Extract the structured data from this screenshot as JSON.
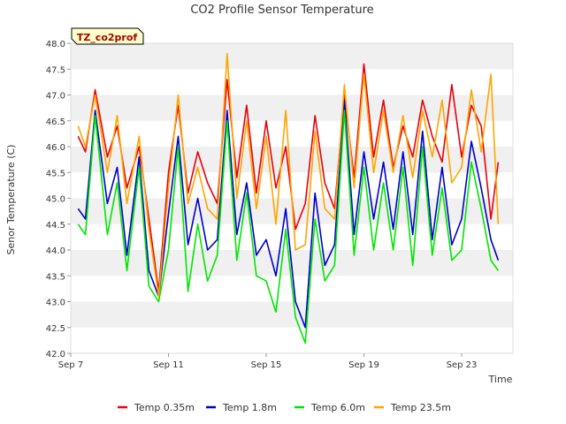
{
  "chart_data": {
    "type": "line",
    "title": "CO2 Profile Sensor Temperature",
    "xlabel": "Time",
    "ylabel": "Senor Temperature (C)",
    "badge": "TZ_co2prof",
    "ylim": [
      42.0,
      48.0
    ],
    "xlim_days": [
      7,
      25.1
    ],
    "y_ticks": [
      "42.0",
      "42.5",
      "43.0",
      "43.5",
      "44.0",
      "44.5",
      "45.0",
      "45.5",
      "46.0",
      "46.5",
      "47.0",
      "47.5",
      "48.0"
    ],
    "x_ticks": [
      {
        "label": "Sep 7",
        "day": 7
      },
      {
        "label": "Sep 11",
        "day": 11
      },
      {
        "label": "Sep 15",
        "day": 15
      },
      {
        "label": "Sep 19",
        "day": 19
      },
      {
        "label": "Sep 23",
        "day": 23
      }
    ],
    "legend_position": "bottom",
    "grid": "alternating horizontal bands",
    "series": [
      {
        "name": "Temp 0.35m",
        "color": "#e8000b",
        "x": [
          7.3,
          7.6,
          8.0,
          8.5,
          8.9,
          9.3,
          9.8,
          10.2,
          10.6,
          11.0,
          11.4,
          11.8,
          12.2,
          12.6,
          13.0,
          13.4,
          13.8,
          14.2,
          14.6,
          15.0,
          15.4,
          15.8,
          16.2,
          16.6,
          17.0,
          17.4,
          17.8,
          18.2,
          18.6,
          19.0,
          19.4,
          19.8,
          20.2,
          20.6,
          21.0,
          21.4,
          21.8,
          22.2,
          22.6,
          23.0,
          23.4,
          23.8,
          24.2,
          24.5
        ],
        "y": [
          46.2,
          45.9,
          47.1,
          45.8,
          46.4,
          45.2,
          46.0,
          44.6,
          43.2,
          45.5,
          46.8,
          45.1,
          45.9,
          45.3,
          44.9,
          47.3,
          45.4,
          46.8,
          45.1,
          46.5,
          45.2,
          46.0,
          44.4,
          44.9,
          46.6,
          45.3,
          44.8,
          47.0,
          45.4,
          47.6,
          45.8,
          46.9,
          45.6,
          46.4,
          45.8,
          46.9,
          46.2,
          45.7,
          47.2,
          45.8,
          46.8,
          46.4,
          44.6,
          45.7
        ]
      },
      {
        "name": "Temp 1.8m",
        "color": "#0000cc",
        "x": [
          7.3,
          7.6,
          8.0,
          8.5,
          8.9,
          9.3,
          9.8,
          10.2,
          10.6,
          11.0,
          11.4,
          11.8,
          12.2,
          12.6,
          13.0,
          13.4,
          13.8,
          14.2,
          14.6,
          15.0,
          15.4,
          15.8,
          16.2,
          16.6,
          17.0,
          17.4,
          17.8,
          18.2,
          18.6,
          19.0,
          19.4,
          19.8,
          20.2,
          20.6,
          21.0,
          21.4,
          21.8,
          22.2,
          22.6,
          23.0,
          23.4,
          23.8,
          24.2,
          24.5
        ],
        "y": [
          44.8,
          44.6,
          46.7,
          44.9,
          45.6,
          43.9,
          45.8,
          43.6,
          43.1,
          44.7,
          46.2,
          44.1,
          45.0,
          44.0,
          44.2,
          46.7,
          44.3,
          45.3,
          43.9,
          44.2,
          43.5,
          44.8,
          43.0,
          42.5,
          45.1,
          43.7,
          44.1,
          46.9,
          44.3,
          45.9,
          44.6,
          45.7,
          44.4,
          45.9,
          44.3,
          46.3,
          44.2,
          45.6,
          44.1,
          44.6,
          46.1,
          45.2,
          44.2,
          43.8
        ]
      },
      {
        "name": "Temp 6.0m",
        "color": "#00e600",
        "x": [
          7.3,
          7.6,
          8.0,
          8.5,
          8.9,
          9.3,
          9.8,
          10.2,
          10.6,
          11.0,
          11.4,
          11.8,
          12.2,
          12.6,
          13.0,
          13.4,
          13.8,
          14.2,
          14.6,
          15.0,
          15.4,
          15.8,
          16.2,
          16.6,
          17.0,
          17.4,
          17.8,
          18.2,
          18.6,
          19.0,
          19.4,
          19.8,
          20.2,
          20.6,
          21.0,
          21.4,
          21.8,
          22.2,
          22.6,
          23.0,
          23.4,
          23.8,
          24.2,
          24.5
        ],
        "y": [
          44.5,
          44.3,
          46.6,
          44.3,
          45.3,
          43.6,
          45.6,
          43.3,
          43.0,
          44.0,
          46.0,
          43.2,
          44.5,
          43.4,
          43.9,
          46.5,
          43.8,
          45.1,
          43.5,
          43.4,
          42.8,
          44.4,
          42.7,
          42.2,
          44.6,
          43.4,
          43.7,
          46.7,
          43.9,
          45.6,
          44.0,
          45.3,
          44.0,
          45.6,
          43.7,
          46.0,
          43.9,
          45.2,
          43.8,
          44.0,
          45.7,
          44.8,
          43.8,
          43.6
        ]
      },
      {
        "name": "Temp 23.5m",
        "color": "#ffa500",
        "x": [
          7.3,
          7.6,
          8.0,
          8.5,
          8.9,
          9.3,
          9.8,
          10.2,
          10.6,
          11.0,
          11.4,
          11.8,
          12.2,
          12.6,
          13.0,
          13.4,
          13.8,
          14.2,
          14.6,
          15.0,
          15.4,
          15.8,
          16.2,
          16.6,
          17.0,
          17.4,
          17.8,
          18.2,
          18.6,
          19.0,
          19.4,
          19.8,
          20.2,
          20.6,
          21.0,
          21.4,
          21.8,
          22.2,
          22.6,
          23.0,
          23.4,
          23.8,
          24.2,
          24.5
        ],
        "y": [
          46.4,
          46.0,
          47.0,
          45.5,
          46.6,
          44.9,
          46.2,
          44.4,
          43.1,
          45.2,
          47.0,
          44.9,
          45.6,
          44.8,
          44.6,
          47.8,
          45.0,
          46.5,
          44.8,
          46.2,
          44.5,
          46.7,
          44.0,
          44.1,
          46.3,
          44.8,
          44.6,
          47.2,
          45.2,
          47.4,
          45.5,
          46.7,
          45.5,
          46.6,
          45.4,
          46.7,
          45.8,
          46.9,
          45.3,
          45.6,
          47.1,
          45.9,
          47.4,
          44.5
        ]
      }
    ]
  }
}
